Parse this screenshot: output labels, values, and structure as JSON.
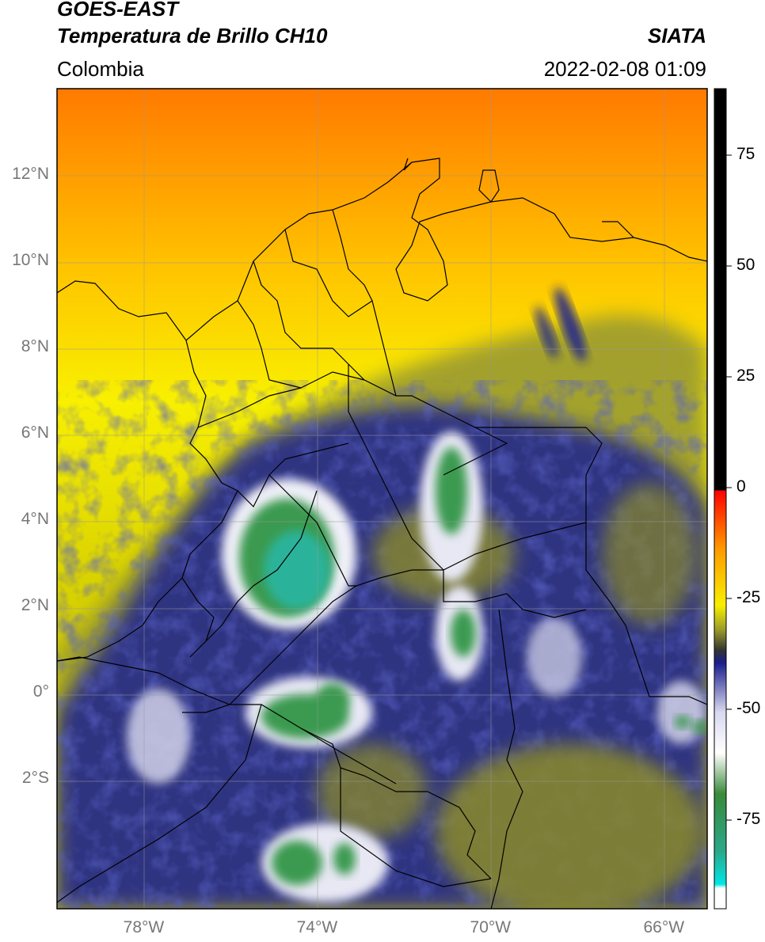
{
  "header": {
    "title": "GOES-EAST",
    "subtitle": "Temperatura de Brillo CH10",
    "source": "SIATA",
    "region": "Colombia",
    "datetime": "2022-02-08 01:09"
  },
  "map": {
    "lon_range": [
      -80,
      -65
    ],
    "lat_range": [
      -5,
      14
    ],
    "lat_ticks": [
      {
        "value": 12,
        "label": "12°N"
      },
      {
        "value": 10,
        "label": "10°N"
      },
      {
        "value": 8,
        "label": "8°N"
      },
      {
        "value": 6,
        "label": "6°N"
      },
      {
        "value": 4,
        "label": "4°N"
      },
      {
        "value": 2,
        "label": "2°N"
      },
      {
        "value": 0,
        "label": "0°"
      },
      {
        "value": -2,
        "label": "2°S"
      }
    ],
    "lon_ticks": [
      {
        "value": -78,
        "label": "78°W"
      },
      {
        "value": -74,
        "label": "74°W"
      },
      {
        "value": -70,
        "label": "70°W"
      },
      {
        "value": -66,
        "label": "66°W"
      }
    ],
    "colors": {
      "warm": "#ff8a00",
      "yellow": "#f4ec00",
      "olive": "#8a8a2a",
      "navy": "#1a1f8a",
      "white": "#f2f2f7",
      "green": "#3a9a4a",
      "teal": "#2bb39a"
    }
  },
  "colorbar": {
    "range": [
      -95,
      90
    ],
    "ticks": [
      {
        "value": 75,
        "label": "75"
      },
      {
        "value": 50,
        "label": "50"
      },
      {
        "value": 25,
        "label": "25"
      },
      {
        "value": 0,
        "label": "0"
      },
      {
        "value": -25,
        "label": "-25"
      },
      {
        "value": -50,
        "label": "-50"
      },
      {
        "value": -75,
        "label": "-75"
      }
    ]
  }
}
